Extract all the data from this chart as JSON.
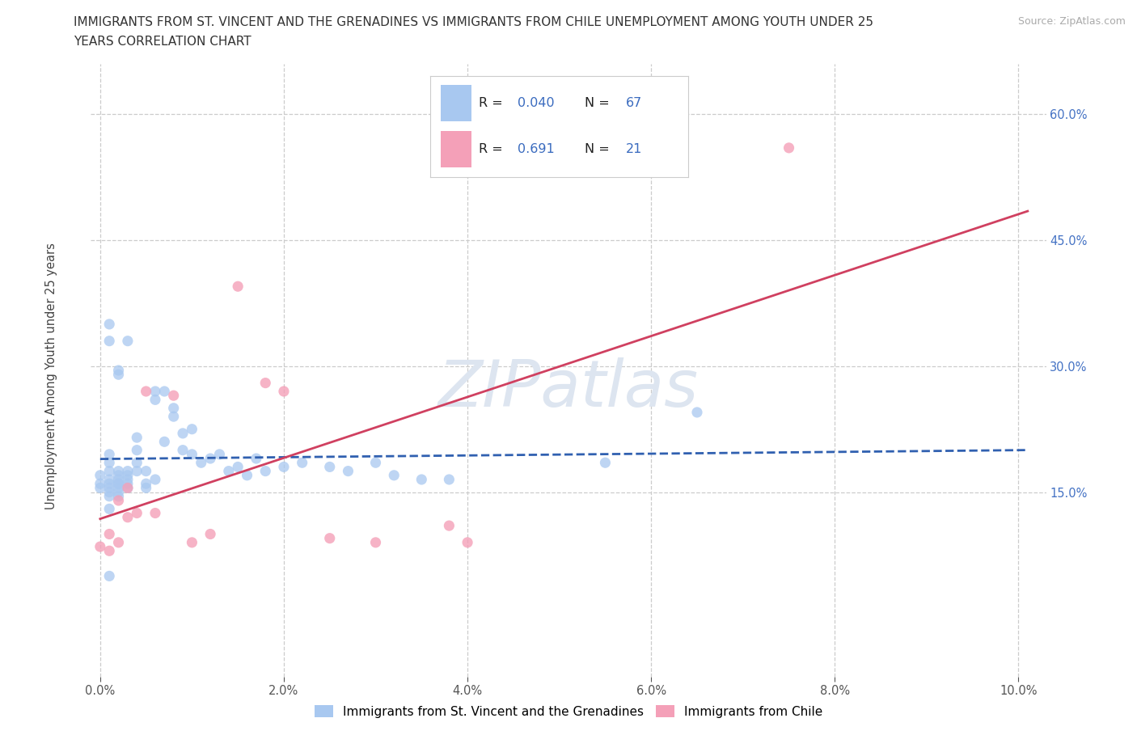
{
  "title_line1": "IMMIGRANTS FROM ST. VINCENT AND THE GRENADINES VS IMMIGRANTS FROM CHILE UNEMPLOYMENT AMONG YOUTH UNDER 25",
  "title_line2": "YEARS CORRELATION CHART",
  "source": "Source: ZipAtlas.com",
  "ylabel": "Unemployment Among Youth under 25 years",
  "color_sv": "#a8c8f0",
  "color_chile": "#f4a0b8",
  "trendline_sv_color": "#3060b0",
  "trendline_chile_color": "#d04060",
  "watermark_color": "#dde5f0",
  "r1": "0.040",
  "n1": "67",
  "r2": "0.691",
  "n2": "21",
  "legend_sv": "Immigrants from St. Vincent and the Grenadines",
  "legend_chile": "Immigrants from Chile",
  "xlim": [
    -0.001,
    0.103
  ],
  "ylim": [
    -0.07,
    0.66
  ],
  "yticks": [
    0.15,
    0.3,
    0.45,
    0.6
  ],
  "xticks": [
    0.0,
    0.02,
    0.04,
    0.06,
    0.08,
    0.1
  ],
  "sv_x": [
    0.0,
    0.0,
    0.0,
    0.001,
    0.001,
    0.001,
    0.001,
    0.001,
    0.001,
    0.001,
    0.001,
    0.002,
    0.002,
    0.002,
    0.002,
    0.002,
    0.002,
    0.002,
    0.003,
    0.003,
    0.003,
    0.003,
    0.003,
    0.004,
    0.004,
    0.004,
    0.004,
    0.005,
    0.005,
    0.005,
    0.006,
    0.006,
    0.006,
    0.007,
    0.007,
    0.008,
    0.008,
    0.009,
    0.009,
    0.01,
    0.01,
    0.011,
    0.012,
    0.013,
    0.014,
    0.015,
    0.016,
    0.017,
    0.018,
    0.02,
    0.022,
    0.025,
    0.027,
    0.03,
    0.032,
    0.035,
    0.038,
    0.001,
    0.002,
    0.003,
    0.001,
    0.002,
    0.055,
    0.065,
    0.002,
    0.001,
    0.001
  ],
  "sv_y": [
    0.155,
    0.16,
    0.17,
    0.145,
    0.15,
    0.155,
    0.16,
    0.165,
    0.175,
    0.185,
    0.195,
    0.145,
    0.15,
    0.155,
    0.16,
    0.165,
    0.17,
    0.175,
    0.155,
    0.16,
    0.165,
    0.17,
    0.175,
    0.175,
    0.185,
    0.2,
    0.215,
    0.155,
    0.16,
    0.175,
    0.165,
    0.26,
    0.27,
    0.21,
    0.27,
    0.24,
    0.25,
    0.2,
    0.22,
    0.195,
    0.225,
    0.185,
    0.19,
    0.195,
    0.175,
    0.18,
    0.17,
    0.19,
    0.175,
    0.18,
    0.185,
    0.18,
    0.175,
    0.185,
    0.17,
    0.165,
    0.165,
    0.33,
    0.295,
    0.33,
    0.35,
    0.29,
    0.185,
    0.245,
    0.16,
    0.05,
    0.13
  ],
  "chile_x": [
    0.0,
    0.001,
    0.001,
    0.002,
    0.002,
    0.003,
    0.003,
    0.004,
    0.005,
    0.006,
    0.008,
    0.01,
    0.012,
    0.015,
    0.018,
    0.02,
    0.025,
    0.03,
    0.038,
    0.04,
    0.075
  ],
  "chile_y": [
    0.085,
    0.08,
    0.1,
    0.09,
    0.14,
    0.12,
    0.155,
    0.125,
    0.27,
    0.125,
    0.265,
    0.09,
    0.1,
    0.395,
    0.28,
    0.27,
    0.095,
    0.09,
    0.11,
    0.09,
    0.56
  ]
}
